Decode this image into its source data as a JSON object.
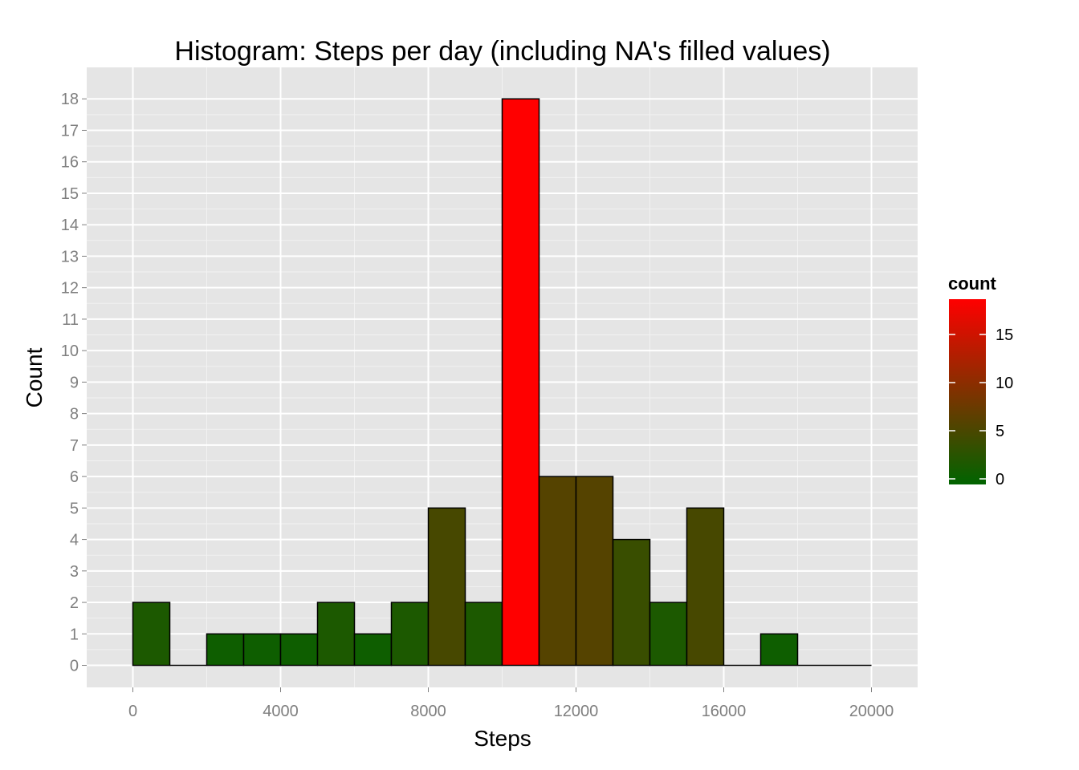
{
  "chart_data": {
    "type": "bar",
    "title": "Histogram: Steps per day (including NA's filled values)",
    "xlabel": "Steps",
    "ylabel": "Count",
    "bin_width": 1000,
    "bins": [
      {
        "start": 0,
        "end": 1000,
        "count": 2
      },
      {
        "start": 1000,
        "end": 2000,
        "count": 0
      },
      {
        "start": 2000,
        "end": 3000,
        "count": 1
      },
      {
        "start": 3000,
        "end": 4000,
        "count": 1
      },
      {
        "start": 4000,
        "end": 5000,
        "count": 1
      },
      {
        "start": 5000,
        "end": 6000,
        "count": 2
      },
      {
        "start": 6000,
        "end": 7000,
        "count": 1
      },
      {
        "start": 7000,
        "end": 8000,
        "count": 2
      },
      {
        "start": 8000,
        "end": 9000,
        "count": 5
      },
      {
        "start": 9000,
        "end": 10000,
        "count": 2
      },
      {
        "start": 10000,
        "end": 11000,
        "count": 18
      },
      {
        "start": 11000,
        "end": 12000,
        "count": 6
      },
      {
        "start": 12000,
        "end": 13000,
        "count": 6
      },
      {
        "start": 13000,
        "end": 14000,
        "count": 4
      },
      {
        "start": 14000,
        "end": 15000,
        "count": 2
      },
      {
        "start": 15000,
        "end": 16000,
        "count": 5
      },
      {
        "start": 16000,
        "end": 17000,
        "count": 0
      },
      {
        "start": 17000,
        "end": 18000,
        "count": 1
      },
      {
        "start": 18000,
        "end": 19000,
        "count": 0
      },
      {
        "start": 19000,
        "end": 20000,
        "count": 0
      }
    ],
    "xlim": [
      -1250,
      21250
    ],
    "ylim": [
      -0.7,
      19.0
    ],
    "x_ticks": [
      "0",
      "4000",
      "8000",
      "12000",
      "16000",
      "20000"
    ],
    "y_ticks": [
      "0",
      "1",
      "2",
      "3",
      "4",
      "5",
      "6",
      "7",
      "8",
      "9",
      "10",
      "11",
      "12",
      "13",
      "14",
      "15",
      "16",
      "17",
      "18"
    ],
    "grid": true,
    "legend": {
      "title": "count",
      "position": "right",
      "low_color": "#006400",
      "high_color": "#ff0000",
      "range": [
        0,
        18
      ],
      "labels": [
        "0",
        "5",
        "10",
        "15"
      ]
    },
    "colors": {
      "panel_background": "#e5e5e5",
      "grid_major": "#ffffff",
      "grid_minor": "#f2f2f2",
      "bar_outline": "#000000"
    }
  }
}
